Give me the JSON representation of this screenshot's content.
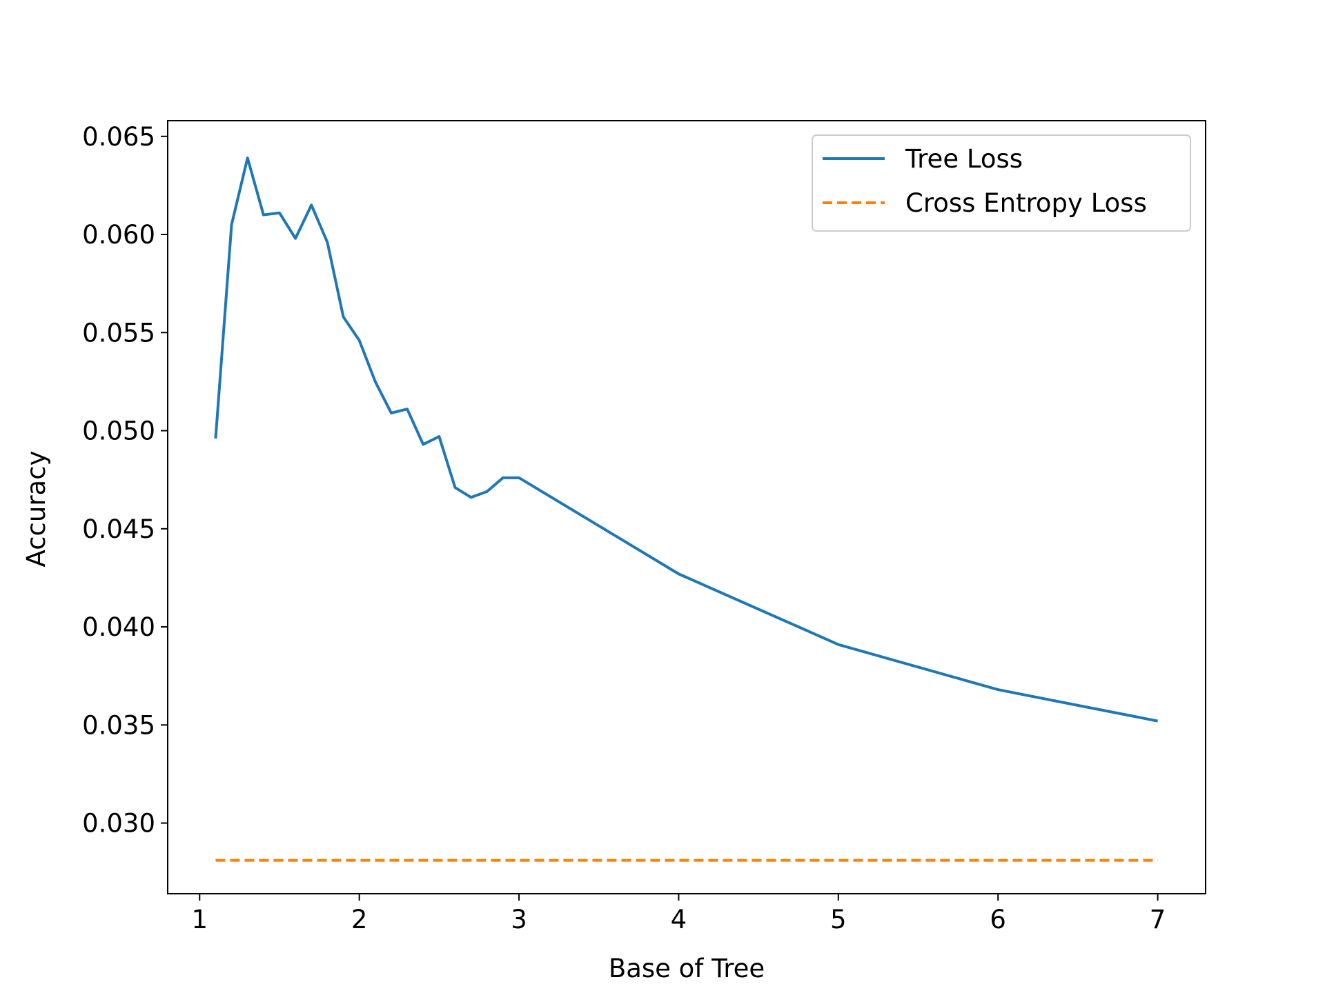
{
  "chart_data": {
    "type": "line",
    "title": "",
    "xlabel": "Base of Tree",
    "ylabel": "Accuracy",
    "xlim": [
      0.8,
      7.3
    ],
    "ylim": [
      0.0264,
      0.0658
    ],
    "xticks": [
      1,
      2,
      3,
      4,
      5,
      6,
      7
    ],
    "xtick_labels": [
      "1",
      "2",
      "3",
      "4",
      "5",
      "6",
      "7"
    ],
    "yticks": [
      0.03,
      0.035,
      0.04,
      0.045,
      0.05,
      0.055,
      0.06,
      0.065
    ],
    "ytick_labels": [
      "0.030",
      "0.035",
      "0.040",
      "0.045",
      "0.050",
      "0.055",
      "0.060",
      "0.065"
    ],
    "grid": false,
    "legend_position": "top-right",
    "series": [
      {
        "name": "Tree Loss",
        "color": "#1f77b4",
        "style": "solid",
        "x": [
          1.1,
          1.2,
          1.3,
          1.4,
          1.5,
          1.6,
          1.7,
          1.8,
          1.9,
          2.0,
          2.1,
          2.2,
          2.3,
          2.4,
          2.5,
          2.6,
          2.7,
          2.8,
          2.9,
          3.0,
          4.0,
          5.0,
          6.0,
          7.0
        ],
        "y": [
          0.0496,
          0.0605,
          0.0639,
          0.061,
          0.0611,
          0.0598,
          0.0615,
          0.0596,
          0.0558,
          0.0546,
          0.0525,
          0.0509,
          0.0511,
          0.0493,
          0.0497,
          0.0471,
          0.0466,
          0.0469,
          0.0476,
          0.0476,
          0.0427,
          0.0391,
          0.0368,
          0.0352
        ]
      },
      {
        "name": "Cross Entropy Loss",
        "color": "#ff7f0e",
        "style": "dashed",
        "x": [
          1.1,
          7.0
        ],
        "y": [
          0.0281,
          0.0281
        ]
      }
    ]
  }
}
